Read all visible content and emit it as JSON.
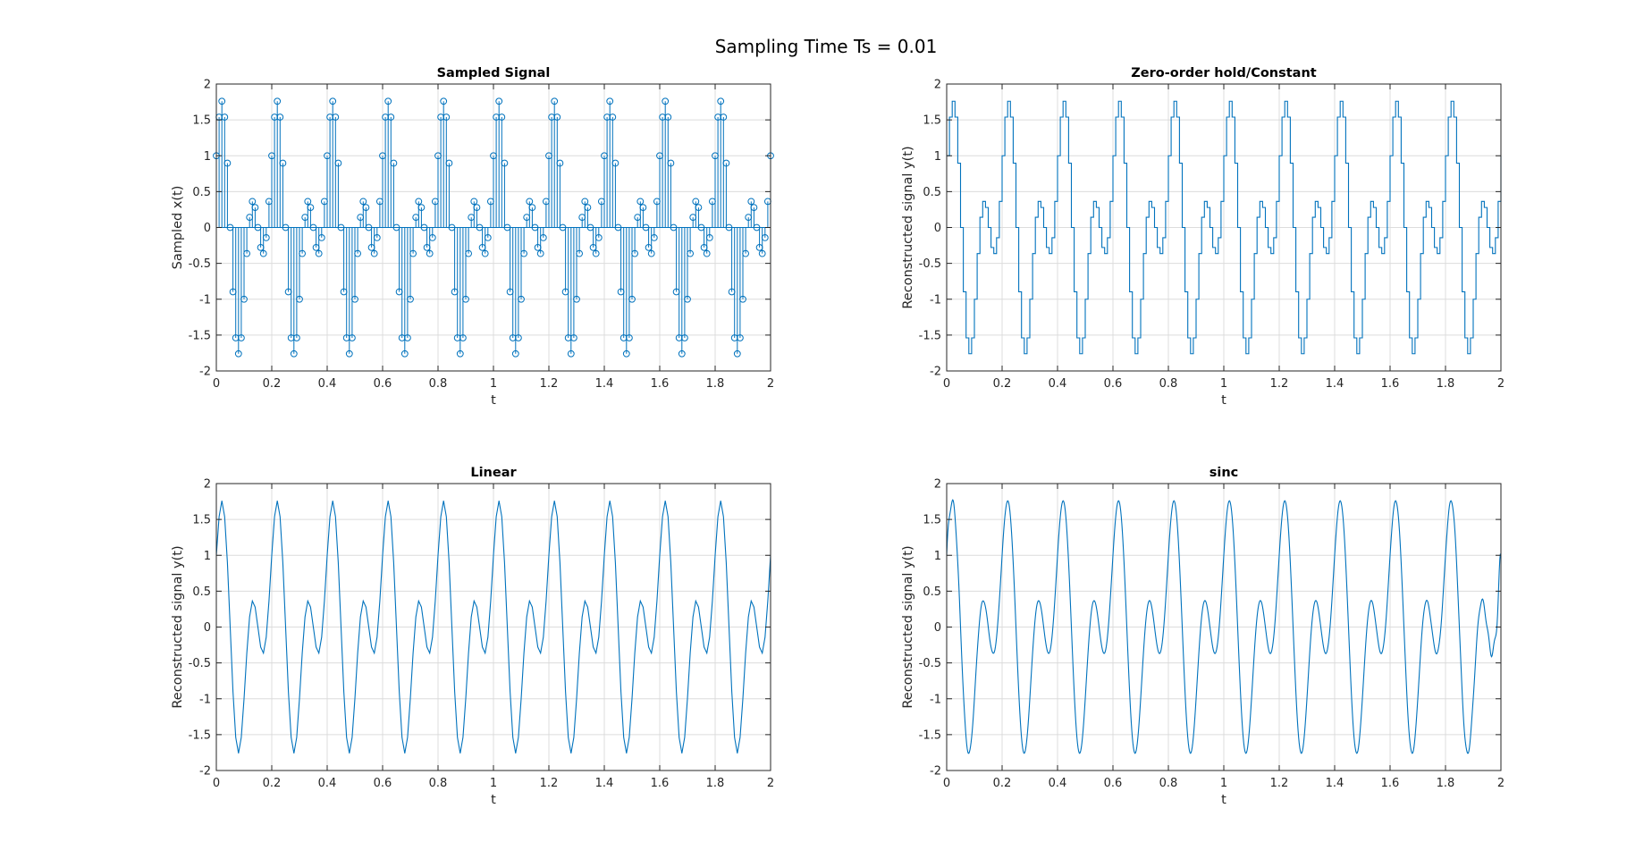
{
  "figure_title": "Sampling Time Ts = 0.01",
  "colors": {
    "series": "#0072bd",
    "axis": "#262626",
    "grid": "#dcdcdc"
  },
  "chart_data": [
    {
      "type": "stem",
      "title": "Sampled Signal",
      "xlabel": "t",
      "ylabel": "Sampled x(t)",
      "xlim": [
        0,
        2
      ],
      "ylim": [
        -2,
        2
      ],
      "xticks": [
        0,
        0.2,
        0.4,
        0.6,
        0.8,
        1,
        1.2,
        1.4,
        1.6,
        1.8,
        2
      ],
      "yticks": [
        -2,
        -1.5,
        -1,
        -0.5,
        0,
        0.5,
        1,
        1.5,
        2
      ],
      "xtick_labels": [
        "0",
        "0.2",
        "0.4",
        "0.6",
        "0.8",
        "1",
        "1.2",
        "1.4",
        "1.6",
        "1.8",
        "2"
      ],
      "ytick_labels": [
        "-2",
        "-1.5",
        "-1",
        "-0.5",
        "0",
        "0.5",
        "1",
        "1.5",
        "2"
      ],
      "grid": true,
      "marker": "circle",
      "sample_interval": 0.01,
      "formula": "x(t) = cos(10*pi*t) + sin(20*pi*t)"
    },
    {
      "type": "stairs",
      "title": "Zero-order hold/Constant",
      "xlabel": "t",
      "ylabel": "Reconstructed signal y(t)",
      "xlim": [
        0,
        2
      ],
      "ylim": [
        -2,
        2
      ],
      "xticks": [
        0,
        0.2,
        0.4,
        0.6,
        0.8,
        1,
        1.2,
        1.4,
        1.6,
        1.8,
        2
      ],
      "yticks": [
        -2,
        -1.5,
        -1,
        -0.5,
        0,
        0.5,
        1,
        1.5,
        2
      ],
      "xtick_labels": [
        "0",
        "0.2",
        "0.4",
        "0.6",
        "0.8",
        "1",
        "1.2",
        "1.4",
        "1.6",
        "1.8",
        "2"
      ],
      "ytick_labels": [
        "-2",
        "-1.5",
        "-1",
        "-0.5",
        "0",
        "0.5",
        "1",
        "1.5",
        "2"
      ],
      "grid": true,
      "sample_interval": 0.01,
      "formula": "x(t) = cos(10*pi*t) + sin(20*pi*t)"
    },
    {
      "type": "line",
      "title": "Linear",
      "xlabel": "t",
      "ylabel": "Reconstructed signal y(t)",
      "xlim": [
        0,
        2
      ],
      "ylim": [
        -2,
        2
      ],
      "xticks": [
        0,
        0.2,
        0.4,
        0.6,
        0.8,
        1,
        1.2,
        1.4,
        1.6,
        1.8,
        2
      ],
      "yticks": [
        -2,
        -1.5,
        -1,
        -0.5,
        0,
        0.5,
        1,
        1.5,
        2
      ],
      "xtick_labels": [
        "0",
        "0.2",
        "0.4",
        "0.6",
        "0.8",
        "1",
        "1.2",
        "1.4",
        "1.6",
        "1.8",
        "2"
      ],
      "ytick_labels": [
        "-2",
        "-1.5",
        "-1",
        "-0.5",
        "0",
        "0.5",
        "1",
        "1.5",
        "2"
      ],
      "grid": true,
      "sample_interval": 0.01,
      "formula": "x(t) = cos(10*pi*t) + sin(20*pi*t)"
    },
    {
      "type": "line",
      "title": "sinc",
      "xlabel": "t",
      "ylabel": "Reconstructed signal y(t)",
      "xlim": [
        0,
        2
      ],
      "ylim": [
        -2,
        2
      ],
      "xticks": [
        0,
        0.2,
        0.4,
        0.6,
        0.8,
        1,
        1.2,
        1.4,
        1.6,
        1.8,
        2
      ],
      "yticks": [
        -2,
        -1.5,
        -1,
        -0.5,
        0,
        0.5,
        1,
        1.5,
        2
      ],
      "xtick_labels": [
        "0",
        "0.2",
        "0.4",
        "0.6",
        "0.8",
        "1",
        "1.2",
        "1.4",
        "1.6",
        "1.8",
        "2"
      ],
      "ytick_labels": [
        "-2",
        "-1.5",
        "-1",
        "-0.5",
        "0",
        "0.5",
        "1",
        "1.5",
        "2"
      ],
      "grid": true,
      "sample_interval": 0.01,
      "formula": "x(t) = cos(10*pi*t) + sin(20*pi*t)"
    }
  ]
}
